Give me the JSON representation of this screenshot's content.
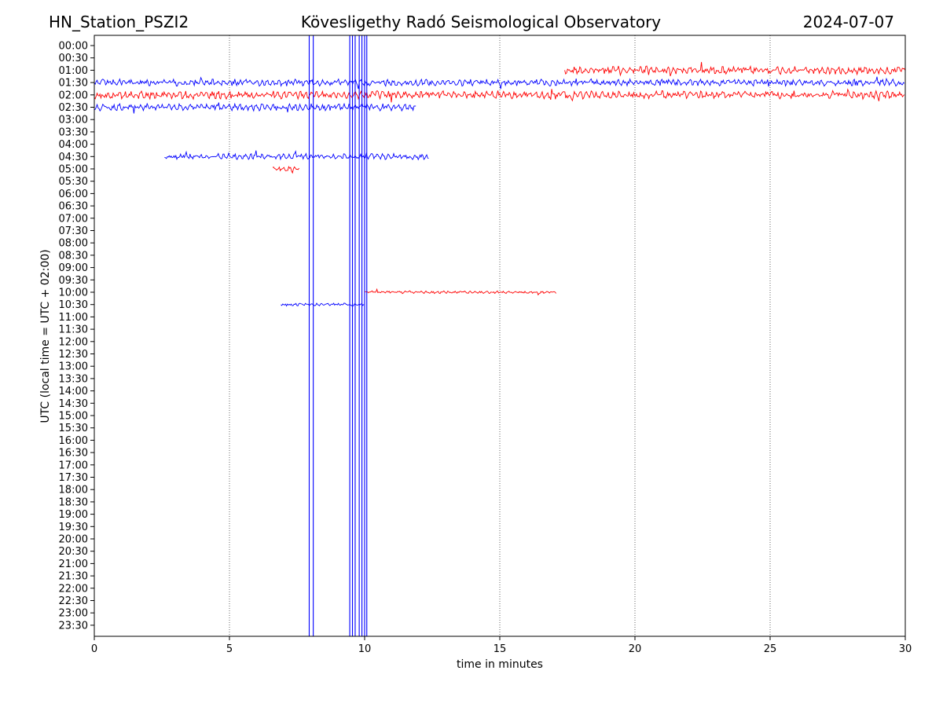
{
  "header": {
    "station": "HN_Station_PSZI2",
    "observatory": "Kövesligethy Radó Seismological Observatory",
    "date": "2024-07-07"
  },
  "chart_data": {
    "type": "line",
    "xlabel": "time in minutes",
    "ylabel": "UTC (local time = UTC + 02:00)",
    "xlim": [
      0,
      30
    ],
    "xticks": [
      0,
      5,
      10,
      15,
      20,
      25,
      30
    ],
    "xgrid": "vertical dotted lines at every 5 minutes",
    "yticks": [
      "00:00",
      "00:30",
      "01:00",
      "01:30",
      "02:00",
      "02:30",
      "03:00",
      "03:30",
      "04:00",
      "04:30",
      "05:00",
      "05:30",
      "06:00",
      "06:30",
      "07:00",
      "07:30",
      "08:00",
      "08:30",
      "09:00",
      "09:30",
      "10:00",
      "10:30",
      "11:00",
      "11:30",
      "12:00",
      "12:30",
      "13:00",
      "13:30",
      "14:00",
      "14:30",
      "15:00",
      "15:30",
      "16:00",
      "16:30",
      "17:00",
      "17:30",
      "18:00",
      "18:30",
      "19:00",
      "19:30",
      "20:00",
      "20:30",
      "21:00",
      "21:30",
      "22:00",
      "22:30",
      "23:00",
      "23:30"
    ],
    "colors": {
      "odd_rows": "#0000ff",
      "even_rows": "#ff0000"
    },
    "traces": [
      {
        "row": "01:00",
        "color": "#ff0000",
        "x_start": 17.4,
        "x_end": 30,
        "amp": 0.35
      },
      {
        "row": "01:30",
        "color": "#0000ff",
        "x_start": 0,
        "x_end": 30,
        "amp": 0.3
      },
      {
        "row": "02:00",
        "color": "#ff0000",
        "x_start": 0,
        "x_end": 30,
        "amp": 0.35
      },
      {
        "row": "02:30",
        "color": "#0000ff",
        "x_start": 0,
        "x_end": 11.9,
        "amp": 0.3
      },
      {
        "row": "04:30",
        "color": "#0000ff",
        "x_start": 2.6,
        "x_end": 12.4,
        "amp": 0.25
      },
      {
        "row": "05:00",
        "color": "#ff0000",
        "x_start": 6.6,
        "x_end": 7.6,
        "amp": 0.2
      },
      {
        "row": "10:00",
        "color": "#ff0000",
        "x_start": 10.0,
        "x_end": 17.1,
        "amp": 0.12
      },
      {
        "row": "10:30",
        "color": "#0000ff",
        "x_start": 6.9,
        "x_end": 10.0,
        "amp": 0.12
      }
    ],
    "spikes": [
      {
        "x": 7.95,
        "color": "#0000ff"
      },
      {
        "x": 8.1,
        "color": "#0000ff"
      },
      {
        "x": 9.45,
        "color": "#0000ff"
      },
      {
        "x": 9.55,
        "color": "#0000ff"
      },
      {
        "x": 9.65,
        "color": "#0000ff"
      },
      {
        "x": 9.8,
        "color": "#0000ff"
      },
      {
        "x": 9.9,
        "color": "#0000ff"
      },
      {
        "x": 10.0,
        "color": "#0000ff"
      },
      {
        "x": 10.08,
        "color": "#0000ff"
      }
    ]
  }
}
